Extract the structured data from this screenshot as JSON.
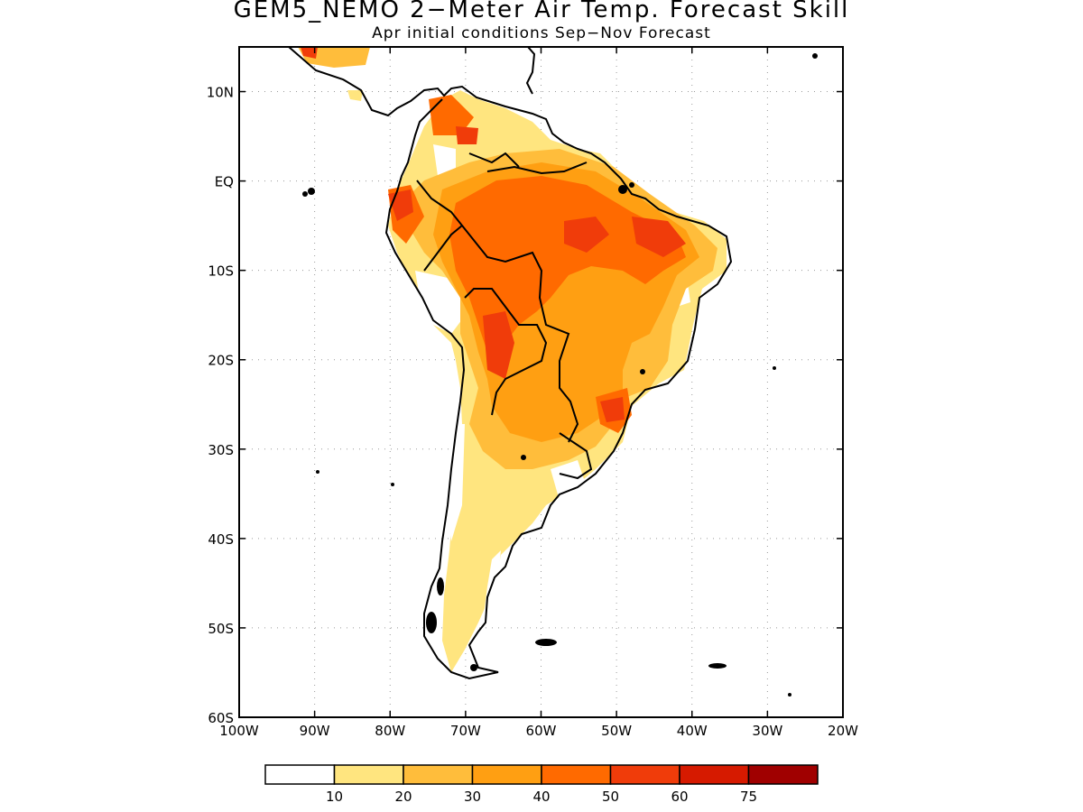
{
  "title": "GEM5_NEMO 2−Meter Air Temp. Forecast Skill",
  "subtitle": "Apr initial conditions  Sep−Nov Forecast",
  "map": {
    "lon_range": [
      -100,
      -20
    ],
    "lat_range": [
      -60,
      15
    ],
    "lat_ticks": [
      {
        "value": 10,
        "label": "10N"
      },
      {
        "value": 0,
        "label": "EQ"
      },
      {
        "value": -10,
        "label": "10S"
      },
      {
        "value": -20,
        "label": "20S"
      },
      {
        "value": -30,
        "label": "30S"
      },
      {
        "value": -40,
        "label": "40S"
      },
      {
        "value": -50,
        "label": "50S"
      },
      {
        "value": -60,
        "label": "60S"
      }
    ],
    "lon_ticks": [
      {
        "value": -100,
        "label": "100W"
      },
      {
        "value": -90,
        "label": "90W"
      },
      {
        "value": -80,
        "label": "80W"
      },
      {
        "value": -70,
        "label": "70W"
      },
      {
        "value": -60,
        "label": "60W"
      },
      {
        "value": -50,
        "label": "50W"
      },
      {
        "value": -40,
        "label": "40W"
      },
      {
        "value": -30,
        "label": "30W"
      },
      {
        "value": -20,
        "label": "20W"
      }
    ],
    "grid": "dotted"
  },
  "colorbar": {
    "colors": [
      "#ffffff",
      "#ffe57f",
      "#ffbd3b",
      "#ff9f12",
      "#ff6a00",
      "#f03c0a",
      "#d61a00",
      "#a00000"
    ],
    "labels": [
      "10",
      "20",
      "30",
      "40",
      "50",
      "60",
      "75"
    ]
  }
}
